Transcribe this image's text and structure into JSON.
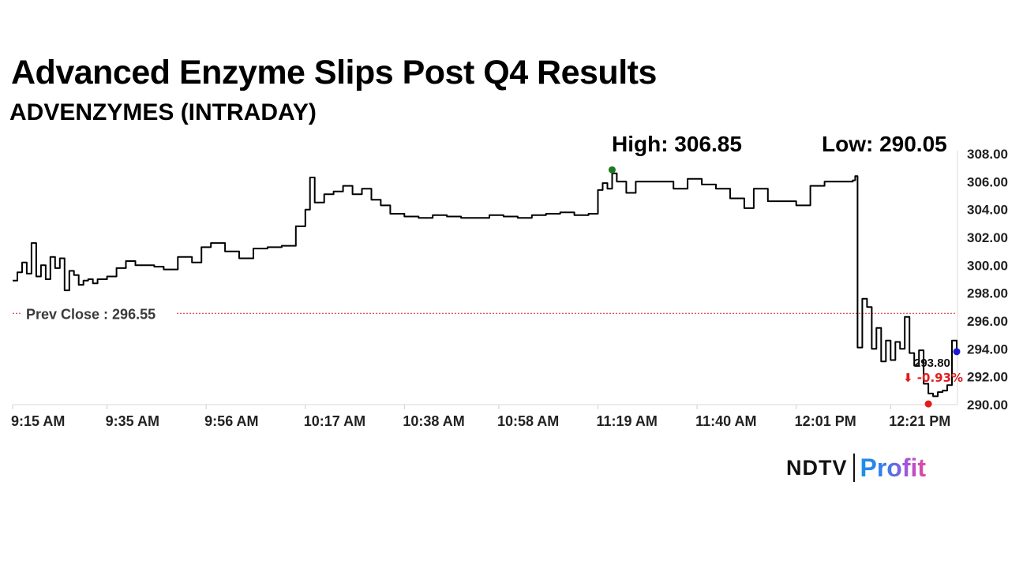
{
  "title": "Advanced Enzyme Slips Post Q4 Results",
  "subtitle": "ADVENZYMES (INTRADAY)",
  "high_label": "High: 306.85",
  "low_label": "Low: 290.05",
  "logo": {
    "left": "NDTV",
    "right": "Profit"
  },
  "chart_data": {
    "type": "line",
    "title": "Advanced Enzyme Slips Post Q4 Results",
    "subtitle": "ADVENZYMES (INTRADAY)",
    "xlabel": "",
    "ylabel": "",
    "ylim": [
      290,
      308
    ],
    "yticks": [
      "308.00",
      "306.00",
      "304.00",
      "302.00",
      "300.00",
      "298.00",
      "296.00",
      "294.00",
      "292.00",
      "290.00"
    ],
    "ytick_values": [
      308,
      306,
      304,
      302,
      300,
      298,
      296,
      294,
      292,
      290
    ],
    "xlim": [
      0,
      200
    ],
    "xticks": [
      "9:15 AM",
      "9:35 AM",
      "9:56 AM",
      "10:17 AM",
      "10:38 AM",
      "10:58 AM",
      "11:19 AM",
      "11:40 AM",
      "12:01 PM",
      "12:21 PM"
    ],
    "xtick_values": [
      0,
      20,
      41,
      62,
      83,
      103,
      124,
      145,
      166,
      186
    ],
    "grid": false,
    "prev_close": {
      "label": "Prev Close : 296.55",
      "value": 296.55,
      "color": "#c62828"
    },
    "high": {
      "value": 306.85,
      "x": 127,
      "color": "#1b7a1b"
    },
    "low": {
      "value": 290.05,
      "x": 194,
      "color": "#e11d1d"
    },
    "last": {
      "value": 293.8,
      "x": 200,
      "label": "293.80",
      "change": "⬇ -0.93%",
      "color": "#1b1bd6",
      "change_color": "#e11d1d"
    },
    "series": [
      {
        "color": "#000000",
        "x": [
          0,
          1,
          2,
          3,
          4,
          5,
          6,
          7,
          8,
          9,
          10,
          11,
          12,
          13,
          14,
          15,
          16,
          17,
          18,
          20,
          22,
          24,
          26,
          28,
          30,
          32,
          35,
          38,
          40,
          42,
          45,
          48,
          51,
          54,
          57,
          60,
          62,
          63,
          64,
          66,
          68,
          70,
          72,
          74,
          76,
          78,
          80,
          83,
          86,
          89,
          92,
          95,
          98,
          101,
          104,
          107,
          110,
          113,
          116,
          119,
          122,
          124,
          125,
          126,
          127,
          128,
          130,
          132,
          134,
          137,
          140,
          143,
          146,
          149,
          152,
          155,
          157,
          160,
          163,
          166,
          169,
          172,
          175,
          177,
          178,
          178.5,
          179,
          180,
          181,
          182,
          183,
          184,
          185,
          186,
          187,
          188,
          189,
          190,
          191,
          192,
          193,
          194,
          195,
          196,
          197,
          198,
          199,
          200
        ],
        "y": [
          298.9,
          299.5,
          300.2,
          299.4,
          301.6,
          299.2,
          300.0,
          299.0,
          300.6,
          299.8,
          300.5,
          298.2,
          299.6,
          299.3,
          298.6,
          298.9,
          299.0,
          298.7,
          299.0,
          299.2,
          299.8,
          300.3,
          300.0,
          300.0,
          299.9,
          299.7,
          300.6,
          300.2,
          301.3,
          301.6,
          301.0,
          300.5,
          301.2,
          301.3,
          301.4,
          302.8,
          304.0,
          306.3,
          304.5,
          305.1,
          305.3,
          305.7,
          305.1,
          305.5,
          304.7,
          304.3,
          303.7,
          303.5,
          303.4,
          303.6,
          303.5,
          303.4,
          303.4,
          303.6,
          303.5,
          303.4,
          303.6,
          303.7,
          303.8,
          303.6,
          303.7,
          305.4,
          305.9,
          305.5,
          306.6,
          306.0,
          305.2,
          306.0,
          306.0,
          306.0,
          305.5,
          306.2,
          305.8,
          305.5,
          304.8,
          304.1,
          305.5,
          304.6,
          304.6,
          304.3,
          305.7,
          306.0,
          306.0,
          306.0,
          306.1,
          306.4,
          294.1,
          297.6,
          297.0,
          294.0,
          295.5,
          293.1,
          294.6,
          293.2,
          294.5,
          294.0,
          296.3,
          293.7,
          292.8,
          293.9,
          291.5,
          290.8,
          290.6,
          290.9,
          291.0,
          291.4,
          294.6,
          293.8
        ]
      }
    ]
  }
}
